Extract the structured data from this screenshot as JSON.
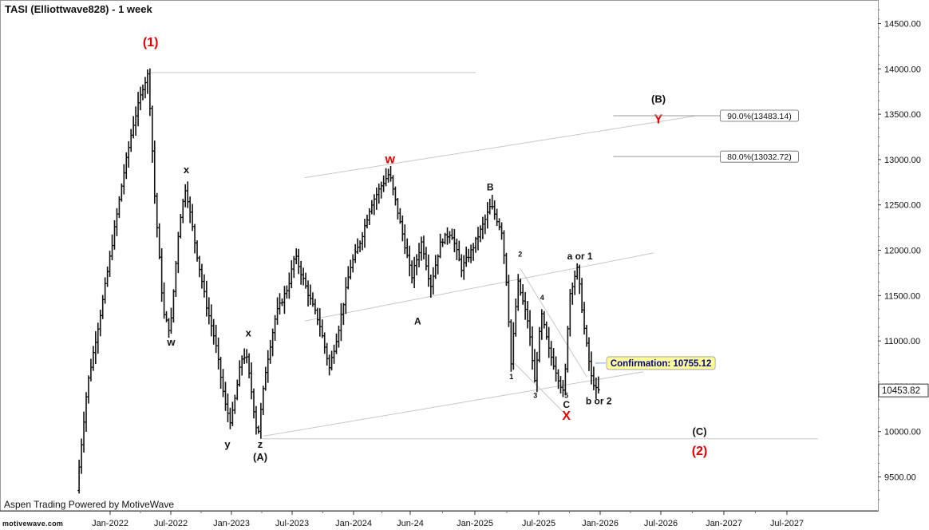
{
  "title": "TASI (Elliottwave828) - 1 week",
  "footer": "Aspen Trading Powered by MotiveWave",
  "logo": "motivewave.com",
  "last_price": "10453.82",
  "colors": {
    "bars": "#111111",
    "red_label": "#e00000",
    "black_label": "#111111",
    "lines": "#c8c8c8",
    "price_box_fill": "#ffffff",
    "confirm_fill": "#ffff99",
    "confirm_text": "#00008b"
  },
  "chart_data": {
    "type": "ohlc",
    "x_ticks": [
      "Jan-2022",
      "Jul-2022",
      "Jan-2023",
      "Jul-2023",
      "Jan-2024",
      "Jun-24",
      "Jan-2025",
      "Jul-2025",
      "Jan-2026",
      "Jul-2026",
      "Jan-2027",
      "Jul-2027"
    ],
    "y_ticks": [
      "9500.00",
      "10000.00",
      "10500.00",
      "11000.00",
      "11500.00",
      "12000.00",
      "12500.00",
      "13000.00",
      "13500.00",
      "14000.00",
      "14500.00"
    ],
    "ylim": [
      9150,
      14700
    ],
    "price_path": [
      [
        "2021-10-01",
        9350
      ],
      [
        "2021-11-01",
        10500
      ],
      [
        "2021-12-15",
        11400
      ],
      [
        "2022-01-15",
        12100
      ],
      [
        "2022-02-15",
        12800
      ],
      [
        "2022-03-15",
        13350
      ],
      [
        "2022-04-15",
        13800
      ],
      [
        "2022-05-01",
        13950
      ],
      [
        "2022-05-20",
        12600
      ],
      [
        "2022-06-15",
        11300
      ],
      [
        "2022-07-05",
        11100
      ],
      [
        "2022-08-01",
        12300
      ],
      [
        "2022-08-20",
        12700
      ],
      [
        "2022-09-20",
        12000
      ],
      [
        "2022-10-20",
        11400
      ],
      [
        "2022-11-15",
        11000
      ],
      [
        "2022-12-15",
        10300
      ],
      [
        "2023-01-01",
        10100
      ],
      [
        "2023-01-15",
        10400
      ],
      [
        "2023-02-01",
        10800
      ],
      [
        "2023-02-15",
        10850
      ],
      [
        "2023-03-01",
        10500
      ],
      [
        "2023-03-15",
        10100
      ],
      [
        "2023-03-22",
        9950
      ],
      [
        "2023-04-15",
        10700
      ],
      [
        "2023-05-15",
        11300
      ],
      [
        "2023-06-20",
        11600
      ],
      [
        "2023-07-10",
        11950
      ],
      [
        "2023-08-20",
        11500
      ],
      [
        "2023-09-20",
        11200
      ],
      [
        "2023-10-20",
        10700
      ],
      [
        "2023-11-15",
        11100
      ],
      [
        "2023-12-20",
        11800
      ],
      [
        "2024-01-20",
        12100
      ],
      [
        "2024-02-20",
        12500
      ],
      [
        "2024-03-20",
        12700
      ],
      [
        "2024-04-15",
        12850
      ],
      [
        "2024-05-20",
        12250
      ],
      [
        "2024-06-20",
        11700
      ],
      [
        "2024-07-20",
        12100
      ],
      [
        "2024-08-15",
        11600
      ],
      [
        "2024-09-15",
        12100
      ],
      [
        "2024-10-15",
        12200
      ],
      [
        "2024-11-15",
        11800
      ],
      [
        "2024-12-15",
        12000
      ],
      [
        "2025-01-20",
        12300
      ],
      [
        "2025-02-10",
        12500
      ],
      [
        "2025-03-15",
        12200
      ],
      [
        "2025-04-01",
        11500
      ],
      [
        "2025-04-10",
        10700
      ],
      [
        "2025-05-01",
        11650
      ],
      [
        "2025-06-01",
        11200
      ],
      [
        "2025-06-20",
        10550
      ],
      [
        "2025-07-10",
        11300
      ],
      [
        "2025-08-01",
        10900
      ],
      [
        "2025-09-15",
        10400
      ],
      [
        "2025-10-01",
        11500
      ],
      [
        "2025-10-15",
        11700
      ],
      [
        "2025-10-25",
        11800
      ],
      [
        "2025-11-15",
        11100
      ],
      [
        "2025-12-05",
        10600
      ],
      [
        "2025-12-20",
        10450
      ]
    ],
    "wave_labels": [
      {
        "text": "(1)",
        "date": "2022-05-01",
        "price": 14250,
        "color": "red",
        "size": 16
      },
      {
        "text": "x",
        "date": "2022-08-15",
        "price": 12850,
        "color": "black",
        "size": 13
      },
      {
        "text": "w",
        "date": "2022-07-01",
        "price": 10950,
        "color": "black",
        "size": 13
      },
      {
        "text": "x",
        "date": "2023-02-15",
        "price": 11050,
        "color": "black",
        "size": 13
      },
      {
        "text": "y",
        "date": "2022-12-15",
        "price": 9820,
        "color": "black",
        "size": 13
      },
      {
        "text": "z",
        "date": "2023-03-22",
        "price": 9820,
        "color": "black",
        "size": 13
      },
      {
        "text": "(A)",
        "date": "2023-03-22",
        "price": 9680,
        "color": "black",
        "size": 13
      },
      {
        "text": "w",
        "date": "2024-04-10",
        "price": 12960,
        "color": "red",
        "size": 16
      },
      {
        "text": "A",
        "date": "2024-07-01",
        "price": 11180,
        "color": "black",
        "size": 12
      },
      {
        "text": "B",
        "date": "2025-02-01",
        "price": 12660,
        "color": "black",
        "size": 12
      },
      {
        "text": "2",
        "date": "2025-05-01",
        "price": 11930,
        "color": "black",
        "size": 9
      },
      {
        "text": "4",
        "date": "2025-07-05",
        "price": 11450,
        "color": "black",
        "size": 9
      },
      {
        "text": "1",
        "date": "2025-04-05",
        "price": 10580,
        "color": "black",
        "size": 9
      },
      {
        "text": "3",
        "date": "2025-06-15",
        "price": 10370,
        "color": "black",
        "size": 9
      },
      {
        "text": "5",
        "date": "2025-09-15",
        "price": 10370,
        "color": "black",
        "size": 9
      },
      {
        "text": "C",
        "date": "2025-09-15",
        "price": 10260,
        "color": "black",
        "size": 12
      },
      {
        "text": "X",
        "date": "2025-09-15",
        "price": 10130,
        "color": "red",
        "size": 16
      },
      {
        "text": "a or 1",
        "date": "2025-10-25",
        "price": 11900,
        "color": "black",
        "size": 12
      },
      {
        "text": "b or 2",
        "date": "2025-12-20",
        "price": 10300,
        "color": "black",
        "size": 12
      },
      {
        "text": "(B)",
        "date": "2026-06-15",
        "price": 13630,
        "color": "black",
        "size": 13
      },
      {
        "text": "Y",
        "date": "2026-06-15",
        "price": 13400,
        "color": "red",
        "size": 16
      },
      {
        "text": "(C)",
        "date": "2026-10-15",
        "price": 9960,
        "color": "black",
        "size": 13
      },
      {
        "text": "(2)",
        "date": "2026-10-15",
        "price": 9740,
        "color": "red",
        "size": 16
      }
    ],
    "lines": [
      {
        "from": [
          "2022-05-01",
          13960
        ],
        "to": [
          "2024-12-20",
          13960
        ]
      },
      {
        "from": [
          "2023-03-22",
          9920
        ],
        "to": [
          "2027-10-01",
          9920
        ]
      },
      {
        "from": [
          "2023-08-01",
          12800
        ],
        "to": [
          "2026-10-01",
          13480
        ]
      },
      {
        "from": [
          "2023-08-01",
          11220
        ],
        "to": [
          "2026-06-01",
          11970
        ]
      },
      {
        "from": [
          "2023-04-01",
          9950
        ],
        "to": [
          "2026-05-01",
          10660
        ]
      },
      {
        "from": [
          "2025-04-15",
          10750
        ],
        "to": [
          "2025-09-10",
          10200
        ]
      },
      {
        "from": [
          "2025-05-01",
          11800
        ],
        "to": [
          "2025-11-15",
          10600
        ]
      }
    ],
    "fib_levels": [
      {
        "label": "90.0%(13483.14)",
        "price": 13483.14,
        "from": "2026-02-01",
        "to": "2026-12-20"
      },
      {
        "label": "80.0%(13032.72)",
        "price": 13032.72,
        "from": "2026-02-01",
        "to": "2026-12-20"
      }
    ],
    "confirmation": {
      "label": "Confirmation: 10755.12",
      "price": 10755.12,
      "from": "2025-12-10",
      "to": "2026-01-10"
    }
  }
}
